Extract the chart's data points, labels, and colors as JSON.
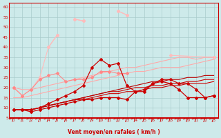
{
  "xlabel": "Vent moyen/en rafales ( km/h )",
  "xlim": [
    -0.5,
    23.5
  ],
  "ylim": [
    5,
    62
  ],
  "yticks": [
    5,
    10,
    15,
    20,
    25,
    30,
    35,
    40,
    45,
    50,
    55,
    60
  ],
  "xticks": [
    0,
    1,
    2,
    3,
    4,
    5,
    6,
    7,
    8,
    9,
    10,
    11,
    12,
    13,
    14,
    15,
    16,
    17,
    18,
    19,
    20,
    21,
    22,
    23
  ],
  "bg": "#cdeaea",
  "grid_color": "#aacccc",
  "lines": [
    {
      "x": [
        0,
        1,
        2,
        3,
        4,
        5,
        6,
        7,
        8,
        9,
        10,
        11,
        12,
        13,
        14,
        15,
        16,
        17,
        18,
        19,
        20,
        21,
        22,
        23
      ],
      "y": [
        20,
        16,
        null,
        null,
        40,
        46,
        null,
        54,
        53,
        null,
        null,
        null,
        58,
        56,
        null,
        null,
        null,
        null,
        null,
        null,
        null,
        null,
        null,
        35
      ],
      "color": "#ffbbbb",
      "lw": 0.8,
      "marker": "D",
      "ms": 2.0
    },
    {
      "x": [
        0,
        1,
        2,
        3,
        4,
        5,
        6,
        7,
        8,
        9,
        10,
        11,
        12,
        13,
        14,
        15,
        16,
        18,
        23
      ],
      "y": [
        20,
        16,
        19,
        25,
        40,
        46,
        null,
        54,
        53,
        null,
        null,
        null,
        58,
        56,
        null,
        null,
        null,
        36,
        35
      ],
      "color": "#ffbbbb",
      "lw": 0.8,
      "marker": "D",
      "ms": 2.0
    },
    {
      "x": [
        0,
        1,
        2,
        3,
        4,
        5,
        6,
        7,
        8,
        9,
        10,
        11,
        12,
        13,
        14,
        15,
        16,
        17,
        18,
        19,
        20,
        21,
        22,
        23
      ],
      "y": [
        20,
        19,
        19,
        20,
        21,
        22,
        23,
        24,
        25,
        26,
        27,
        28,
        29,
        30,
        30,
        31,
        32,
        33,
        34,
        35,
        35,
        34,
        35,
        35
      ],
      "color": "#ffaaaa",
      "lw": 0.8,
      "marker": null,
      "ms": 0
    },
    {
      "x": [
        0,
        1,
        2,
        3,
        4,
        5,
        6,
        7,
        8,
        9,
        10,
        11,
        12,
        13,
        14,
        15,
        16,
        17,
        18,
        19,
        20,
        21,
        22,
        23
      ],
      "y": [
        15,
        15,
        16,
        17,
        18,
        19,
        20,
        21,
        22,
        23,
        24,
        25,
        26,
        27,
        28,
        28,
        29,
        30,
        30,
        30,
        31,
        32,
        33,
        34
      ],
      "color": "#ffaaaa",
      "lw": 0.8,
      "marker": null,
      "ms": 0
    },
    {
      "x": [
        0,
        1,
        2,
        3,
        4,
        5,
        6,
        7,
        8,
        9,
        10,
        11,
        12,
        13
      ],
      "y": [
        20,
        16,
        19,
        24,
        26,
        27,
        23,
        24,
        24,
        25,
        28,
        28,
        27,
        27
      ],
      "color": "#ff8888",
      "lw": 0.8,
      "marker": "D",
      "ms": 2.0
    },
    {
      "x": [
        0,
        1,
        2,
        3,
        4,
        5,
        6,
        7,
        8,
        9,
        10,
        11,
        12,
        13,
        14,
        15,
        16,
        17,
        18,
        19,
        20,
        21,
        22,
        23
      ],
      "y": [
        9,
        9,
        9,
        10,
        11,
        12,
        13,
        14,
        14,
        15,
        16,
        17,
        17,
        18,
        18,
        19,
        20,
        20,
        21,
        21,
        22,
        22,
        22,
        23
      ],
      "color": "#cc0000",
      "lw": 0.8,
      "marker": null,
      "ms": 0
    },
    {
      "x": [
        0,
        1,
        2,
        3,
        4,
        5,
        6,
        7,
        8,
        9,
        10,
        11,
        12,
        13,
        14,
        15,
        16,
        17,
        18,
        19,
        20,
        21,
        22,
        23
      ],
      "y": [
        9,
        9,
        9,
        10,
        11,
        12,
        13,
        14,
        15,
        16,
        17,
        18,
        18,
        19,
        20,
        20,
        21,
        21,
        22,
        22,
        23,
        23,
        24,
        24
      ],
      "color": "#cc0000",
      "lw": 0.8,
      "marker": null,
      "ms": 0
    },
    {
      "x": [
        0,
        1,
        2,
        3,
        4,
        5,
        6,
        7,
        8,
        9,
        10,
        11,
        12,
        13,
        14,
        15,
        16,
        17,
        18,
        19,
        20,
        21,
        22,
        23
      ],
      "y": [
        9,
        9,
        9,
        10,
        11,
        12,
        13,
        14,
        15,
        16,
        17,
        18,
        19,
        20,
        21,
        22,
        23,
        23,
        24,
        24,
        25,
        25,
        26,
        26
      ],
      "color": "#bb0000",
      "lw": 0.8,
      "marker": null,
      "ms": 0
    },
    {
      "x": [
        0,
        1,
        2,
        3,
        4,
        5,
        6,
        7,
        8,
        9,
        10,
        11,
        12,
        13,
        14,
        15,
        16,
        17,
        18,
        19,
        20,
        21,
        22,
        23
      ],
      "y": [
        9,
        9,
        9,
        10,
        12,
        14,
        16,
        18,
        21,
        30,
        34,
        31,
        32,
        21,
        18,
        19,
        22,
        23,
        22,
        19,
        15,
        15,
        15,
        16
      ],
      "color": "#cc0000",
      "lw": 0.9,
      "marker": "D",
      "ms": 2.0
    },
    {
      "x": [
        0,
        1,
        2,
        3,
        4,
        5,
        6,
        7,
        8,
        9,
        10,
        11,
        12,
        13,
        14,
        15,
        16,
        17,
        18,
        19,
        20,
        21,
        22,
        23
      ],
      "y": [
        9,
        9,
        8,
        9,
        10,
        11,
        12,
        13,
        14,
        14,
        15,
        15,
        15,
        14,
        18,
        18,
        22,
        24,
        24,
        22,
        22,
        19,
        15,
        16
      ],
      "color": "#cc0000",
      "lw": 0.9,
      "marker": "D",
      "ms": 2.0
    }
  ]
}
